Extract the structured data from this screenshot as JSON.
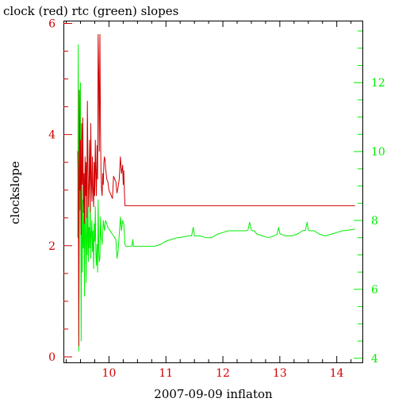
{
  "chart_data": {
    "type": "line",
    "title": "clock (red) rtc (green) slopes",
    "xlabel": "2007-09-09 inflaton",
    "ylabel": "clockslope",
    "xlim": [
      9.2,
      14.45
    ],
    "ylim_left": [
      -0.1,
      6.05
    ],
    "ylim_right": [
      3.88,
      13.8
    ],
    "x_ticks": [
      10,
      11,
      12,
      13,
      14
    ],
    "y_left_ticks": [
      0,
      2,
      4,
      6
    ],
    "y_right_ticks": [
      4,
      6,
      8,
      10,
      12
    ],
    "grid": false,
    "colors": {
      "clock": "#d00000",
      "rtc": "#00ee00",
      "axis": "#000000"
    },
    "series": [
      {
        "name": "clock",
        "axis": "left",
        "color": "#d00000",
        "x": [
          9.45,
          9.46,
          9.47,
          9.48,
          9.49,
          9.5,
          9.51,
          9.52,
          9.53,
          9.54,
          9.55,
          9.56,
          9.57,
          9.58,
          9.59,
          9.6,
          9.61,
          9.62,
          9.63,
          9.64,
          9.65,
          9.66,
          9.67,
          9.68,
          9.69,
          9.7,
          9.71,
          9.72,
          9.73,
          9.74,
          9.75,
          9.76,
          9.77,
          9.78,
          9.79,
          9.8,
          9.81,
          9.82,
          9.83,
          9.84,
          9.85,
          9.86,
          9.87,
          9.88,
          9.89,
          9.9,
          9.91,
          9.92,
          9.93,
          9.94,
          9.95,
          9.96,
          9.98,
          10.0,
          10.02,
          10.04,
          10.06,
          10.08,
          10.1,
          10.12,
          10.14,
          10.16,
          10.18,
          10.2,
          10.22,
          10.24,
          10.25,
          10.26,
          10.27,
          10.28,
          10.3,
          10.5,
          11.0,
          11.5,
          12.0,
          12.5,
          13.0,
          13.5,
          14.0,
          14.32
        ],
        "y": [
          3.7,
          3.2,
          0.2,
          4.8,
          3.0,
          3.9,
          2.2,
          4.2,
          3.1,
          4.3,
          2.6,
          3.3,
          2.4,
          3.6,
          2.9,
          3.5,
          2.5,
          4.6,
          3.4,
          2.7,
          3.1,
          3.9,
          2.6,
          4.2,
          3.2,
          2.8,
          3.6,
          3.0,
          2.7,
          3.5,
          2.9,
          3.9,
          3.3,
          2.9,
          3.8,
          3.2,
          5.8,
          5.1,
          3.7,
          5.8,
          4.1,
          3.3,
          3.0,
          2.9,
          3.3,
          3.1,
          3.5,
          3.6,
          3.55,
          3.4,
          3.3,
          3.2,
          3.15,
          3.0,
          2.95,
          2.9,
          2.85,
          3.25,
          3.2,
          3.15,
          2.95,
          3.05,
          3.2,
          3.6,
          3.3,
          3.45,
          3.1,
          3.35,
          3.0,
          2.72,
          2.72,
          2.72,
          2.72,
          2.72,
          2.72,
          2.72,
          2.72,
          2.72,
          2.72,
          2.72
        ]
      },
      {
        "name": "rtc",
        "axis": "right",
        "color": "#00ee00",
        "x": [
          9.45,
          9.46,
          9.47,
          9.48,
          9.49,
          9.5,
          9.51,
          9.52,
          9.53,
          9.54,
          9.55,
          9.56,
          9.57,
          9.58,
          9.59,
          9.6,
          9.61,
          9.62,
          9.63,
          9.64,
          9.65,
          9.66,
          9.67,
          9.68,
          9.69,
          9.7,
          9.71,
          9.72,
          9.73,
          9.74,
          9.75,
          9.76,
          9.77,
          9.78,
          9.79,
          9.8,
          9.81,
          9.82,
          9.83,
          9.84,
          9.85,
          9.86,
          9.88,
          9.9,
          9.92,
          9.94,
          9.96,
          9.98,
          10.0,
          10.02,
          10.04,
          10.06,
          10.08,
          10.1,
          10.12,
          10.14,
          10.16,
          10.18,
          10.2,
          10.22,
          10.24,
          10.26,
          10.28,
          10.3,
          10.4,
          10.42,
          10.43,
          10.44,
          10.46,
          10.5,
          10.6,
          10.7,
          10.8,
          10.9,
          11.0,
          11.1,
          11.2,
          11.3,
          11.4,
          11.45,
          11.48,
          11.5,
          11.52,
          11.55,
          11.6,
          11.7,
          11.8,
          11.9,
          12.0,
          12.1,
          12.2,
          12.3,
          12.4,
          12.44,
          12.47,
          12.5,
          12.52,
          12.55,
          12.6,
          12.7,
          12.8,
          12.9,
          12.95,
          12.98,
          13.0,
          13.02,
          13.05,
          13.1,
          13.2,
          13.3,
          13.4,
          13.45,
          13.48,
          13.5,
          13.52,
          13.6,
          13.7,
          13.8,
          13.9,
          14.0,
          14.1,
          14.2,
          14.32
        ],
        "y": [
          7.5,
          13.1,
          4.2,
          9.8,
          8.3,
          12.0,
          4.5,
          9.0,
          6.5,
          8.6,
          7.2,
          8.3,
          5.8,
          8.9,
          7.5,
          6.2,
          8.7,
          7.0,
          9.1,
          6.8,
          7.8,
          7.2,
          8.5,
          6.9,
          7.6,
          8.0,
          7.1,
          7.7,
          6.6,
          7.9,
          7.4,
          8.4,
          7.0,
          6.7,
          7.3,
          6.5,
          8.6,
          7.2,
          6.8,
          6.9,
          8.1,
          7.6,
          7.3,
          8.0,
          7.7,
          8.0,
          7.9,
          7.8,
          7.75,
          7.7,
          7.65,
          7.6,
          7.55,
          7.5,
          7.45,
          6.9,
          7.1,
          7.6,
          8.1,
          7.7,
          8.0,
          7.9,
          7.3,
          7.25,
          7.25,
          7.45,
          7.25,
          7.25,
          7.25,
          7.25,
          7.25,
          7.25,
          7.25,
          7.3,
          7.4,
          7.45,
          7.5,
          7.52,
          7.55,
          7.55,
          7.8,
          7.55,
          7.55,
          7.55,
          7.55,
          7.5,
          7.5,
          7.6,
          7.65,
          7.7,
          7.7,
          7.7,
          7.7,
          7.72,
          7.95,
          7.72,
          7.7,
          7.7,
          7.6,
          7.55,
          7.5,
          7.55,
          7.6,
          7.8,
          7.62,
          7.6,
          7.58,
          7.55,
          7.55,
          7.6,
          7.7,
          7.72,
          7.95,
          7.72,
          7.7,
          7.7,
          7.6,
          7.55,
          7.6,
          7.65,
          7.7,
          7.72,
          7.75
        ]
      }
    ]
  }
}
